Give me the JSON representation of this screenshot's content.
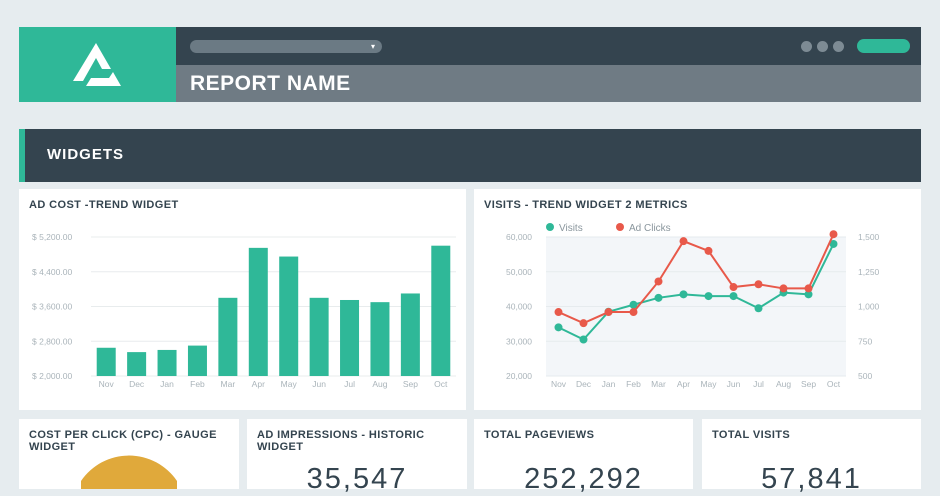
{
  "header": {
    "report_title": "REPORT NAME",
    "dropdown_caret": "▾",
    "colors": {
      "brand": "#2fb898",
      "dark": "#34444f",
      "title_bar": "#6f7b84"
    }
  },
  "section": {
    "title": "WIDGETS"
  },
  "widgets": {
    "ad_cost": {
      "title": "AD COST -TREND WIDGET"
    },
    "visits": {
      "title": "VISITS - TREND WIDGET 2 METRICS"
    },
    "cpc": {
      "title_line1": "COST PER CLICK (CPC) - GAUGE",
      "title_line2": "WIDGET"
    },
    "impressions": {
      "title_line1": "AD IMPRESSIONS - HISTORIC",
      "title_line2": "WIDGET",
      "value": "35,547"
    },
    "pageviews": {
      "title": "TOTAL PAGEVIEWS",
      "value": "252,292"
    },
    "total_visits": {
      "title": "TOTAL VISITS",
      "value": "57,841"
    }
  },
  "chart_data": [
    {
      "type": "bar",
      "title": "AD COST -TREND WIDGET",
      "categories": [
        "Nov",
        "Dec",
        "Jan",
        "Feb",
        "Mar",
        "Apr",
        "May",
        "Jun",
        "Jul",
        "Aug",
        "Sep",
        "Oct"
      ],
      "values": [
        2650,
        2550,
        2600,
        2700,
        3800,
        4950,
        4750,
        3800,
        3750,
        3700,
        3900,
        5000
      ],
      "ylim": [
        2000,
        5200
      ],
      "yticks": [
        2000,
        2800,
        3600,
        4400,
        5200
      ],
      "ytick_labels": [
        "$ 2,000.00",
        "$ 2,800.00",
        "$ 3,600.00",
        "$ 4,400.00",
        "$ 5,200.00"
      ],
      "color": "#2fb898",
      "grid": true
    },
    {
      "type": "line",
      "title": "VISITS - TREND WIDGET 2 METRICS",
      "categories": [
        "Nov",
        "Dec",
        "Jan",
        "Feb",
        "Mar",
        "Apr",
        "May",
        "Jun",
        "Jul",
        "Aug",
        "Sep",
        "Oct"
      ],
      "series": [
        {
          "name": "Visits",
          "axis": "left",
          "color": "#2fb898",
          "values": [
            34000,
            30500,
            38500,
            40500,
            42500,
            43500,
            43000,
            43000,
            39500,
            44000,
            43500,
            58000
          ]
        },
        {
          "name": "Ad Clicks",
          "axis": "right",
          "color": "#e8594a",
          "values": [
            960,
            880,
            960,
            960,
            1180,
            1470,
            1400,
            1140,
            1160,
            1130,
            1130,
            1520
          ]
        }
      ],
      "ylim_left": [
        20000,
        60000
      ],
      "yticks_left": [
        20000,
        30000,
        40000,
        50000,
        60000
      ],
      "ytick_labels_left": [
        "20,000",
        "30,000",
        "40,000",
        "50,000",
        "60,000"
      ],
      "ylim_right": [
        500,
        1500
      ],
      "yticks_right": [
        500,
        750,
        1000,
        1250,
        1500
      ],
      "ytick_labels_right": [
        "500",
        "750",
        "1,000",
        "1,250",
        "1,500"
      ],
      "legend": "top-left",
      "grid": true
    },
    {
      "type": "gauge",
      "title": "COST PER CLICK (CPC) - GAUGE WIDGET",
      "color": "#e0a93b"
    }
  ]
}
